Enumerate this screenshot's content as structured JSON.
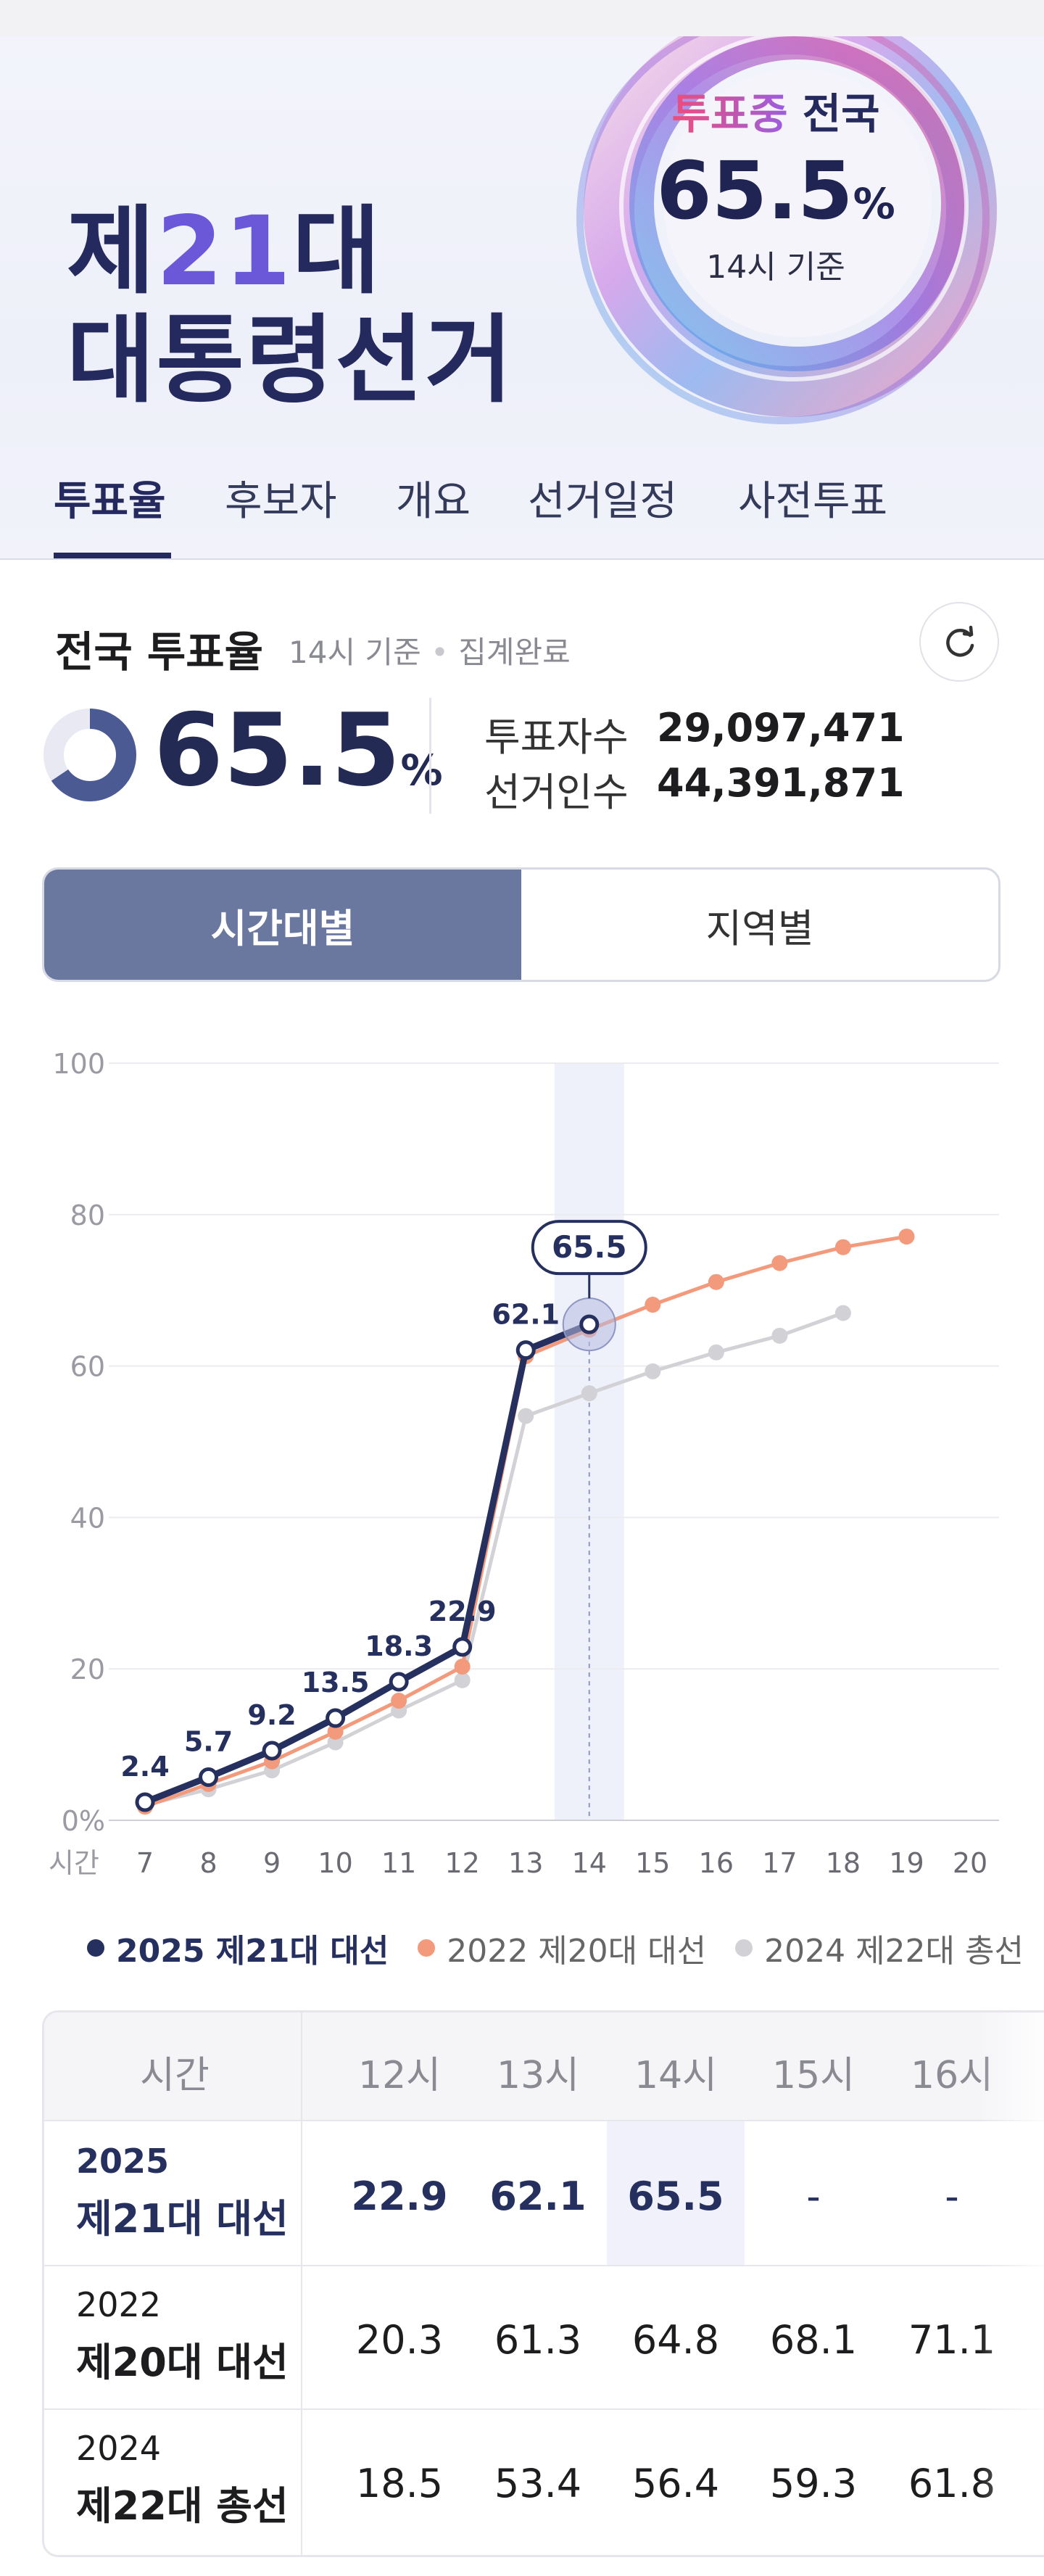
{
  "banner": {
    "title_prefix": "제",
    "title_number": "21",
    "title_suffix": "대",
    "title_line2": "대통령선거",
    "vote_label_a": "투표중",
    "vote_label_b": "전국",
    "vote_rate": "65.5",
    "vote_rate_unit": "%",
    "vote_time": "14시 기준"
  },
  "tabs": [
    {
      "label": "투표율",
      "active": true
    },
    {
      "label": "후보자",
      "active": false
    },
    {
      "label": "개요",
      "active": false
    },
    {
      "label": "선거일정",
      "active": false
    },
    {
      "label": "사전투표",
      "active": false
    }
  ],
  "summary": {
    "title": "전국 투표율",
    "time": "14시 기준",
    "status": "집계완료",
    "rate": "65.5",
    "rate_unit": "%",
    "voters_label": "투표자수",
    "voters_value": "29,097,471",
    "electors_label": "선거인수",
    "electors_value": "44,391,871",
    "refresh_icon": "refresh-icon"
  },
  "toggle": {
    "by_time": "시간대별",
    "by_region": "지역별",
    "selected": "시간대별"
  },
  "chart_data": {
    "type": "line",
    "xlabel": "시간",
    "x": [
      7,
      8,
      9,
      10,
      11,
      12,
      13,
      14,
      15,
      16,
      17,
      18,
      19,
      20
    ],
    "ylim": [
      0,
      100
    ],
    "yticks": [
      "0%",
      "20",
      "40",
      "60",
      "80",
      "100"
    ],
    "ytick_values": [
      0,
      20,
      40,
      60,
      80,
      100
    ],
    "highlight_x": 14,
    "highlight_label": "65.5",
    "series": [
      {
        "name": "2024 제22대 총선",
        "color": "#d2d2d6",
        "x": [
          7,
          8,
          9,
          10,
          11,
          12,
          13,
          14,
          15,
          16,
          17,
          18
        ],
        "values": [
          2.0,
          4.1,
          6.6,
          10.3,
          14.5,
          18.5,
          53.4,
          56.4,
          59.3,
          61.8,
          64.0,
          67.0
        ]
      },
      {
        "name": "2022 제20대 대선",
        "color": "#f29a7b",
        "x": [
          7,
          8,
          9,
          10,
          11,
          12,
          13,
          14,
          15,
          16,
          17,
          18,
          19
        ],
        "values": [
          1.8,
          4.8,
          7.8,
          11.7,
          15.8,
          20.3,
          61.3,
          64.8,
          68.1,
          71.1,
          73.6,
          75.7,
          77.1
        ]
      },
      {
        "name": "2025 제21대 대선",
        "color": "#26305f",
        "x": [
          7,
          8,
          9,
          10,
          11,
          12,
          13,
          14
        ],
        "values": [
          2.4,
          5.7,
          9.2,
          13.5,
          18.3,
          22.9,
          62.1,
          65.5
        ],
        "labels": [
          "2.4",
          "5.7",
          "9.2",
          "13.5",
          "18.3",
          "22.9",
          "62.1",
          ""
        ]
      }
    ]
  },
  "legend": [
    {
      "label": "2025 제21대 대선",
      "color": "#26305f",
      "bold": true
    },
    {
      "label": "2022 제20대 대선",
      "color": "#f29a7b",
      "bold": false
    },
    {
      "label": "2024 제22대 총선",
      "color": "#d2d2d6",
      "bold": false
    }
  ],
  "table": {
    "header_label": "시간",
    "columns": [
      "12시",
      "13시",
      "14시",
      "15시",
      "16시"
    ],
    "rows": [
      {
        "year": "2025",
        "name": "제21대 대선",
        "values": [
          "22.9",
          "62.1",
          "65.5",
          "-",
          "-"
        ],
        "current": true
      },
      {
        "year": "2022",
        "name": "제20대 대선",
        "values": [
          "20.3",
          "61.3",
          "64.8",
          "68.1",
          "71.1"
        ],
        "current": false
      },
      {
        "year": "2024",
        "name": "제22대 총선",
        "values": [
          "18.5",
          "53.4",
          "56.4",
          "59.3",
          "61.8"
        ],
        "current": false
      }
    ]
  }
}
